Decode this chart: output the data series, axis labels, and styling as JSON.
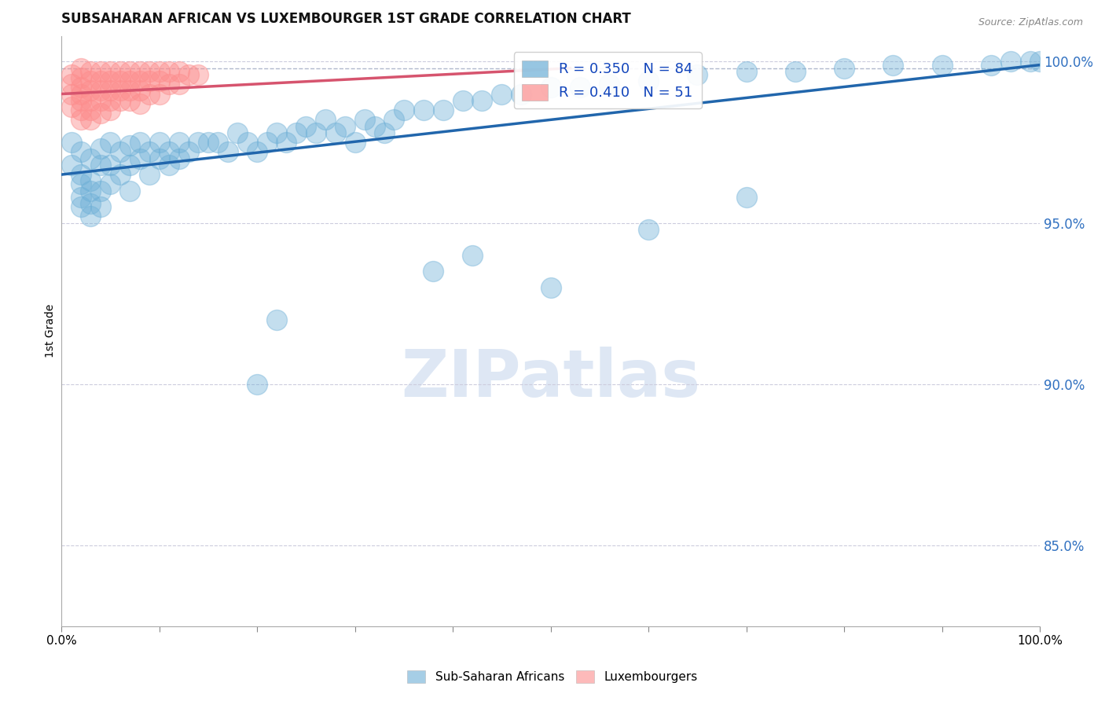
{
  "title": "SUBSAHARAN AFRICAN VS LUXEMBOURGER 1ST GRADE CORRELATION CHART",
  "source_text": "Source: ZipAtlas.com",
  "ylabel": "1st Grade",
  "xlim": [
    0.0,
    1.0
  ],
  "ylim": [
    0.825,
    1.008
  ],
  "yticks": [
    0.85,
    0.9,
    0.95,
    1.0
  ],
  "ytick_labels": [
    "85.0%",
    "90.0%",
    "95.0%",
    "100.0%"
  ],
  "legend_labels": [
    "Sub-Saharan Africans",
    "Luxembourgers"
  ],
  "blue_R": 0.35,
  "blue_N": 84,
  "pink_R": 0.41,
  "pink_N": 51,
  "blue_color": "#6BAED6",
  "pink_color": "#FC8D8D",
  "blue_line_color": "#2166AC",
  "pink_line_color": "#D6546E",
  "watermark_text": "ZIPatlas",
  "dashed_line_y": 0.998,
  "blue_trend_x0": 0.0,
  "blue_trend_y0": 0.965,
  "blue_trend_x1": 1.0,
  "blue_trend_y1": 0.999,
  "pink_trend_x0": 0.0,
  "pink_trend_y0": 0.99,
  "pink_trend_x1": 0.52,
  "pink_trend_y1": 0.998,
  "blue_scatter_x": [
    0.01,
    0.01,
    0.02,
    0.02,
    0.02,
    0.02,
    0.02,
    0.03,
    0.03,
    0.03,
    0.03,
    0.03,
    0.04,
    0.04,
    0.04,
    0.04,
    0.05,
    0.05,
    0.05,
    0.06,
    0.06,
    0.07,
    0.07,
    0.07,
    0.08,
    0.08,
    0.09,
    0.09,
    0.1,
    0.1,
    0.11,
    0.11,
    0.12,
    0.12,
    0.13,
    0.14,
    0.15,
    0.16,
    0.17,
    0.18,
    0.19,
    0.2,
    0.21,
    0.22,
    0.23,
    0.24,
    0.25,
    0.26,
    0.27,
    0.28,
    0.29,
    0.3,
    0.31,
    0.32,
    0.33,
    0.34,
    0.35,
    0.37,
    0.39,
    0.41,
    0.43,
    0.45,
    0.47,
    0.5,
    0.53,
    0.56,
    0.6,
    0.65,
    0.7,
    0.75,
    0.8,
    0.85,
    0.9,
    0.95,
    0.97,
    0.99,
    1.0,
    0.2,
    0.22,
    0.38,
    0.42,
    0.5,
    0.6,
    0.7
  ],
  "blue_scatter_y": [
    0.975,
    0.968,
    0.972,
    0.965,
    0.962,
    0.958,
    0.955,
    0.97,
    0.963,
    0.96,
    0.956,
    0.952,
    0.973,
    0.968,
    0.96,
    0.955,
    0.975,
    0.968,
    0.962,
    0.972,
    0.965,
    0.974,
    0.968,
    0.96,
    0.975,
    0.97,
    0.972,
    0.965,
    0.975,
    0.97,
    0.972,
    0.968,
    0.975,
    0.97,
    0.972,
    0.975,
    0.975,
    0.975,
    0.972,
    0.978,
    0.975,
    0.972,
    0.975,
    0.978,
    0.975,
    0.978,
    0.98,
    0.978,
    0.982,
    0.978,
    0.98,
    0.975,
    0.982,
    0.98,
    0.978,
    0.982,
    0.985,
    0.985,
    0.985,
    0.988,
    0.988,
    0.99,
    0.99,
    0.992,
    0.992,
    0.993,
    0.994,
    0.996,
    0.997,
    0.997,
    0.998,
    0.999,
    0.999,
    0.999,
    1.0,
    1.0,
    1.0,
    0.9,
    0.92,
    0.935,
    0.94,
    0.93,
    0.948,
    0.958
  ],
  "pink_scatter_x": [
    0.01,
    0.01,
    0.01,
    0.01,
    0.02,
    0.02,
    0.02,
    0.02,
    0.02,
    0.02,
    0.02,
    0.03,
    0.03,
    0.03,
    0.03,
    0.03,
    0.03,
    0.04,
    0.04,
    0.04,
    0.04,
    0.04,
    0.05,
    0.05,
    0.05,
    0.05,
    0.05,
    0.06,
    0.06,
    0.06,
    0.06,
    0.07,
    0.07,
    0.07,
    0.07,
    0.08,
    0.08,
    0.08,
    0.08,
    0.09,
    0.09,
    0.09,
    0.1,
    0.1,
    0.1,
    0.11,
    0.11,
    0.12,
    0.12,
    0.13,
    0.14
  ],
  "pink_scatter_y": [
    0.996,
    0.993,
    0.99,
    0.986,
    0.998,
    0.995,
    0.992,
    0.99,
    0.988,
    0.985,
    0.982,
    0.997,
    0.994,
    0.991,
    0.988,
    0.985,
    0.982,
    0.997,
    0.994,
    0.991,
    0.988,
    0.984,
    0.997,
    0.994,
    0.991,
    0.988,
    0.985,
    0.997,
    0.994,
    0.991,
    0.988,
    0.997,
    0.994,
    0.991,
    0.988,
    0.997,
    0.994,
    0.991,
    0.987,
    0.997,
    0.994,
    0.99,
    0.997,
    0.994,
    0.99,
    0.997,
    0.993,
    0.997,
    0.993,
    0.996,
    0.996
  ],
  "figsize": [
    14.06,
    8.92
  ],
  "dpi": 100
}
